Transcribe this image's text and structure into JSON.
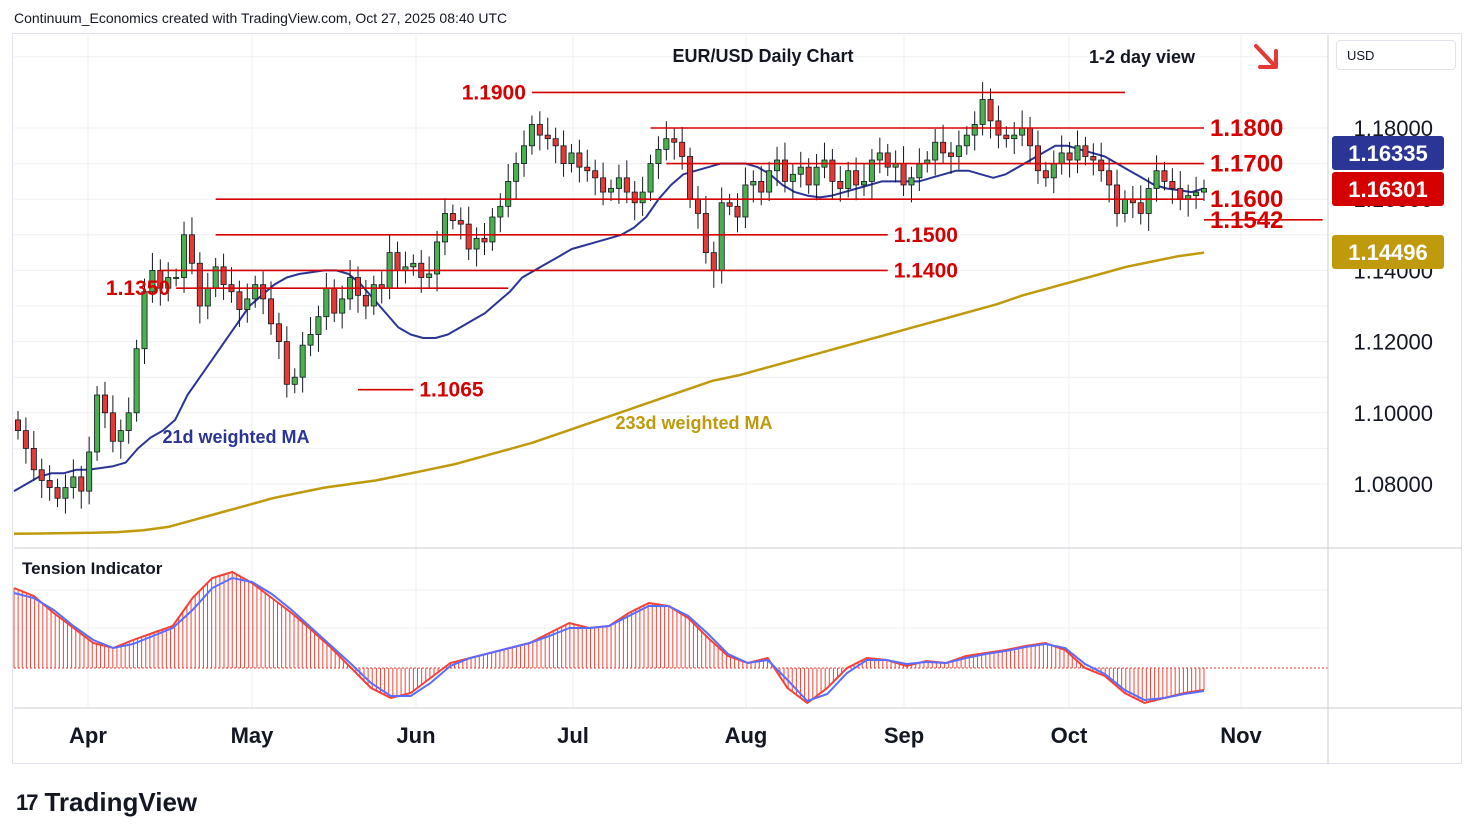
{
  "header": {
    "text": "Continuum_Economics created with TradingView.com, Oct 27, 2025 08:40 UTC"
  },
  "brand": {
    "logo": "17",
    "name": "TradingView"
  },
  "currency_button": {
    "label": "USD"
  },
  "colors": {
    "bull": "#4caf50",
    "bear": "#e53935",
    "wick": "#131722",
    "level": "#d50000",
    "ma21": "#2a3595",
    "ma233": "#bf9a0c",
    "tension_red": "#f44336",
    "tension_blue": "#5b6cff",
    "grid": "#eef0f4"
  },
  "chart_data": {
    "type": "candlestick",
    "title": "EUR/USD Daily Chart",
    "view_label": "1-2 day view",
    "view_arrow_icon": "down-right-arrow-icon",
    "x_ticks": [
      "Apr",
      "May",
      "Jun",
      "Jul",
      "Aug",
      "Sep",
      "Oct",
      "Nov"
    ],
    "y_ticks": [
      "1.18000",
      "1.16000",
      "1.14000",
      "1.12000",
      "1.10000",
      "1.08000"
    ],
    "y_tick_values": [
      1.18,
      1.16,
      1.14,
      1.12,
      1.1,
      1.08
    ],
    "ylim": [
      1.066,
      1.2
    ],
    "grid": true,
    "price_badges": [
      {
        "label": "1.16335",
        "value": 1.16335,
        "color": "#2a3595"
      },
      {
        "label": "1.16301",
        "value": 1.16301,
        "color": "#d50000"
      },
      {
        "label": "1.14496",
        "value": 1.14496,
        "color": "#bf9a0c"
      }
    ],
    "levels": [
      {
        "label": "1.1900",
        "value": 1.19,
        "from": 65,
        "to": 140,
        "label_side": "left"
      },
      {
        "label": "1.1800",
        "value": 1.18,
        "from": 80,
        "to": 185,
        "label_side": "right"
      },
      {
        "label": "1.1700",
        "value": 1.17,
        "from": 82,
        "to": 185,
        "label_side": "right"
      },
      {
        "label": "1.1600",
        "value": 1.16,
        "from": 25,
        "to": 185,
        "label_side": "right"
      },
      {
        "label": "1.1542",
        "value": 1.1542,
        "from": 165,
        "to": 185,
        "label_side": "right"
      },
      {
        "label": "1.1500",
        "value": 1.15,
        "from": 25,
        "to": 110,
        "label_side": "right"
      },
      {
        "label": "1.1400",
        "value": 1.14,
        "from": 18,
        "to": 110,
        "label_side": "right"
      },
      {
        "label": "1.1350",
        "value": 1.135,
        "from": 20,
        "to": 62,
        "label_side": "left"
      },
      {
        "label": "1.1065",
        "value": 1.1065,
        "from": 43,
        "to": 50,
        "label_side": "right"
      }
    ],
    "ma_labels": [
      {
        "name": "21d weighted MA",
        "color": "#2a3595"
      },
      {
        "name": "233d weighted MA",
        "color": "#bf9a0c"
      }
    ],
    "closes": [
      1.095,
      1.09,
      1.084,
      1.081,
      1.079,
      1.076,
      1.079,
      1.082,
      1.078,
      1.089,
      1.105,
      1.1,
      1.092,
      1.095,
      1.1,
      1.118,
      1.134,
      1.14,
      1.135,
      1.138,
      1.138,
      1.15,
      1.142,
      1.13,
      1.135,
      1.141,
      1.136,
      1.134,
      1.129,
      1.132,
      1.136,
      1.132,
      1.125,
      1.12,
      1.108,
      1.11,
      1.119,
      1.122,
      1.127,
      1.135,
      1.128,
      1.132,
      1.138,
      1.133,
      1.13,
      1.136,
      1.135,
      1.145,
      1.14,
      1.141,
      1.142,
      1.138,
      1.139,
      1.148,
      1.156,
      1.154,
      1.153,
      1.146,
      1.149,
      1.148,
      1.155,
      1.158,
      1.165,
      1.17,
      1.175,
      1.181,
      1.178,
      1.177,
      1.175,
      1.17,
      1.173,
      1.169,
      1.168,
      1.166,
      1.162,
      1.163,
      1.166,
      1.162,
      1.159,
      1.162,
      1.17,
      1.174,
      1.177,
      1.176,
      1.172,
      1.16,
      1.156,
      1.145,
      1.14,
      1.159,
      1.158,
      1.155,
      1.164,
      1.165,
      1.162,
      1.168,
      1.171,
      1.165,
      1.167,
      1.169,
      1.164,
      1.169,
      1.171,
      1.165,
      1.163,
      1.168,
      1.164,
      1.165,
      1.171,
      1.173,
      1.169,
      1.17,
      1.164,
      1.166,
      1.17,
      1.171,
      1.176,
      1.173,
      1.172,
      1.175,
      1.178,
      1.181,
      1.188,
      1.182,
      1.178,
      1.177,
      1.178,
      1.18,
      1.175,
      1.168,
      1.166,
      1.17,
      1.173,
      1.171,
      1.175,
      1.172,
      1.171,
      1.168,
      1.164,
      1.156,
      1.16,
      1.159,
      1.156,
      1.163,
      1.168,
      1.165,
      1.163,
      1.16,
      1.161,
      1.162,
      1.163
    ],
    "ma21": [
      1.078,
      1.08,
      1.082,
      1.083,
      1.083,
      1.084,
      1.084,
      1.0845,
      1.085,
      1.086,
      1.09,
      1.093,
      1.095,
      1.098,
      1.105,
      1.11,
      1.115,
      1.12,
      1.125,
      1.13,
      1.133,
      1.136,
      1.138,
      1.139,
      1.1395,
      1.14,
      1.14,
      1.139,
      1.136,
      1.132,
      1.128,
      1.124,
      1.122,
      1.121,
      1.121,
      1.122,
      1.124,
      1.126,
      1.128,
      1.131,
      1.134,
      1.138,
      1.14,
      1.142,
      1.144,
      1.146,
      1.147,
      1.148,
      1.149,
      1.15,
      1.152,
      1.155,
      1.16,
      1.164,
      1.167,
      1.168,
      1.169,
      1.17,
      1.17,
      1.17,
      1.169,
      1.167,
      1.164,
      1.162,
      1.161,
      1.1605,
      1.161,
      1.162,
      1.163,
      1.164,
      1.165,
      1.165,
      1.165,
      1.165,
      1.166,
      1.167,
      1.168,
      1.168,
      1.167,
      1.166,
      1.167,
      1.169,
      1.171,
      1.173,
      1.175,
      1.175,
      1.174,
      1.173,
      1.172,
      1.17,
      1.168,
      1.166,
      1.164,
      1.163,
      1.1625,
      1.162,
      1.163
    ],
    "ma233": [
      1.066,
      1.0661,
      1.0662,
      1.0663,
      1.0665,
      1.067,
      1.068,
      1.07,
      1.072,
      1.074,
      1.076,
      1.0775,
      1.079,
      1.08,
      1.081,
      1.0825,
      1.084,
      1.0855,
      1.0875,
      1.0895,
      1.0915,
      1.094,
      1.0965,
      1.099,
      1.1015,
      1.104,
      1.1065,
      1.109,
      1.1105,
      1.1125,
      1.1145,
      1.1165,
      1.1185,
      1.1205,
      1.1225,
      1.1245,
      1.1265,
      1.1285,
      1.1305,
      1.133,
      1.135,
      1.137,
      1.139,
      1.141,
      1.1425,
      1.144,
      1.145
    ],
    "tension_indicator": {
      "title": "Tension Indicator",
      "values": [
        0.8,
        0.72,
        0.55,
        0.4,
        0.25,
        0.2,
        0.28,
        0.35,
        0.42,
        0.7,
        0.9,
        0.96,
        0.85,
        0.7,
        0.55,
        0.38,
        0.2,
        0.0,
        -0.2,
        -0.3,
        -0.25,
        -0.1,
        0.05,
        0.1,
        0.15,
        0.2,
        0.25,
        0.35,
        0.45,
        0.4,
        0.42,
        0.55,
        0.65,
        0.62,
        0.5,
        0.3,
        0.12,
        0.05,
        0.1,
        -0.2,
        -0.35,
        -0.2,
        0.0,
        0.1,
        0.08,
        0.02,
        0.07,
        0.05,
        0.12,
        0.15,
        0.18,
        0.22,
        0.25,
        0.18,
        0.0,
        -0.08,
        -0.25,
        -0.35,
        -0.3,
        -0.25,
        -0.22
      ],
      "blue": [
        0.75,
        0.7,
        0.58,
        0.42,
        0.28,
        0.2,
        0.24,
        0.32,
        0.4,
        0.58,
        0.8,
        0.9,
        0.86,
        0.74,
        0.58,
        0.4,
        0.22,
        0.04,
        -0.15,
        -0.28,
        -0.28,
        -0.15,
        0.02,
        0.1,
        0.15,
        0.2,
        0.25,
        0.32,
        0.4,
        0.4,
        0.42,
        0.52,
        0.62,
        0.62,
        0.52,
        0.34,
        0.14,
        0.05,
        0.08,
        -0.12,
        -0.33,
        -0.26,
        -0.05,
        0.08,
        0.08,
        0.04,
        0.06,
        0.05,
        0.1,
        0.14,
        0.17,
        0.21,
        0.24,
        0.2,
        0.04,
        -0.06,
        -0.22,
        -0.32,
        -0.3,
        -0.26,
        -0.23
      ]
    }
  }
}
